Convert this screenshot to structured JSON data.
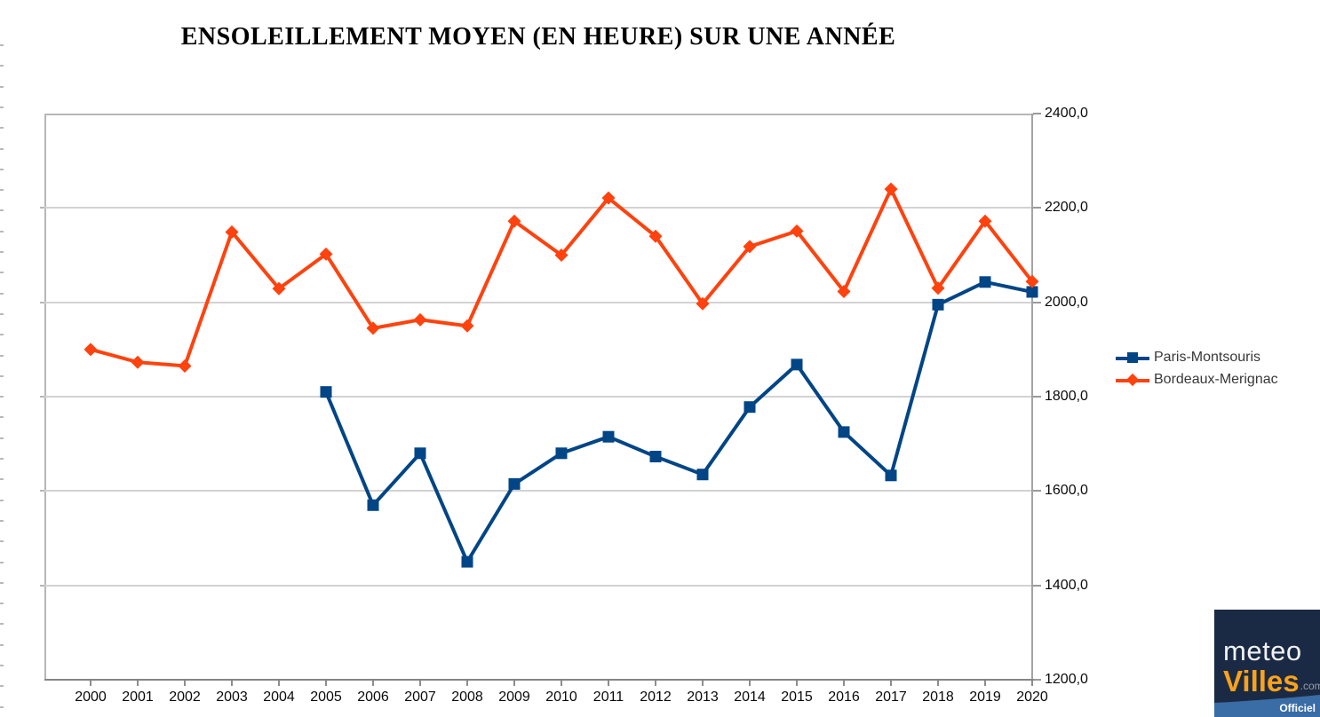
{
  "title": "ENSOLEILLEMENT MOYEN (EN HEURE) SUR UNE ANNÉE",
  "chart_data": {
    "type": "line",
    "x": [
      "2000",
      "2001",
      "2002",
      "2003",
      "2004",
      "2005",
      "2006",
      "2007",
      "2008",
      "2009",
      "2010",
      "2011",
      "2012",
      "2013",
      "2014",
      "2015",
      "2016",
      "2017",
      "2018",
      "2019",
      "2020"
    ],
    "series": [
      {
        "name": "Paris-Montsouris",
        "color": "#004586",
        "marker": "square",
        "values": [
          null,
          null,
          null,
          null,
          null,
          1810,
          1570,
          1680,
          1450,
          1615,
          1680,
          1715,
          1673,
          1635,
          1778,
          1868,
          1725,
          1633,
          1995,
          2043,
          2022
        ]
      },
      {
        "name": "Bordeaux-Merignac",
        "color": "#FF420E",
        "marker": "diamond",
        "values": [
          1900,
          1873,
          1865,
          2149,
          2029,
          2102,
          1945,
          1963,
          1950,
          2172,
          2100,
          2221,
          2140,
          1997,
          2118,
          2151,
          2023,
          2240,
          2030,
          2172,
          2044
        ]
      }
    ],
    "ylim": [
      1200,
      2400
    ],
    "ytick_step": 200,
    "ytick_labels": [
      "2400,0",
      "2200,0",
      "2000,0",
      "1800,0",
      "1600,0",
      "1400,0",
      "1200,0"
    ],
    "grid": "horizontal",
    "legend_position": "right",
    "xlabel": "",
    "ylabel": ""
  },
  "legend": {
    "items": [
      {
        "label": "Paris-Montsouris"
      },
      {
        "label": "Bordeaux-Merignac"
      }
    ]
  },
  "logo": {
    "line1": "meteo",
    "line2": "Villes",
    "suffix": ".com",
    "badge": "Officiel",
    "bg_color": "#1b2a44",
    "accent_color": "#f9a21b",
    "band_color": "#3a6ca5"
  }
}
